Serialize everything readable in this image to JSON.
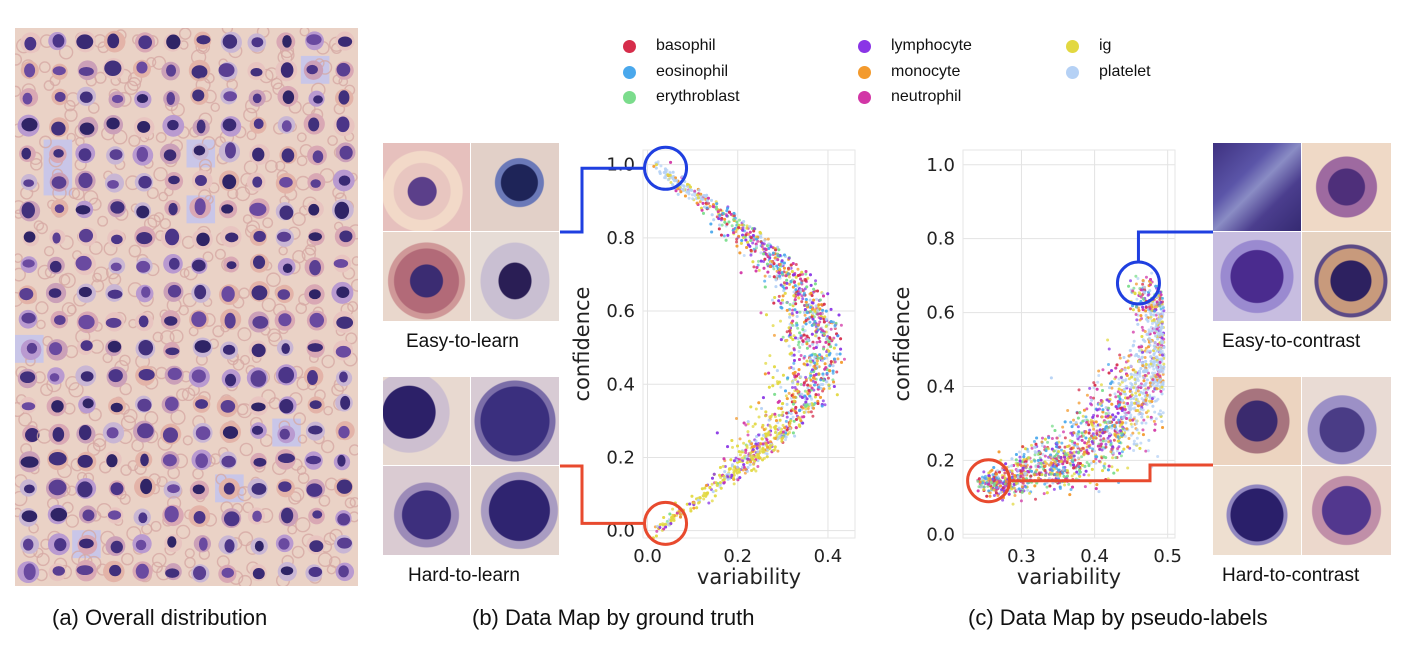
{
  "captions": {
    "a": "(a) Overall distribution",
    "b": "(b) Data Map by ground truth",
    "c": "(c) Data Map by pseudo-labels"
  },
  "thumb_labels": {
    "easy_learn": "Easy-to-learn",
    "hard_learn": "Hard-to-learn",
    "easy_contrast": "Easy-to-contrast",
    "hard_contrast": "Hard-to-contrast"
  },
  "legend": [
    {
      "label": "basophil",
      "color": "#d62d4b"
    },
    {
      "label": "eosinophil",
      "color": "#4aa8ec"
    },
    {
      "label": "erythroblast",
      "color": "#7bdc8c"
    },
    {
      "label": "lymphocyte",
      "color": "#8a35e6"
    },
    {
      "label": "monocyte",
      "color": "#f39a2d"
    },
    {
      "label": "neutrophil",
      "color": "#d236a6"
    },
    {
      "label": "ig",
      "color": "#e2d841"
    },
    {
      "label": "platelet",
      "color": "#b5d1f5"
    }
  ],
  "chart_data": [
    {
      "type": "scatter",
      "title": "",
      "xlabel": "variability",
      "ylabel": "confidence",
      "xlim": [
        -0.01,
        0.46
      ],
      "ylim": [
        -0.02,
        1.04
      ],
      "xticks": [
        "0.0",
        "0.2",
        "0.4"
      ],
      "yticks": [
        "0.0",
        "0.2",
        "0.4",
        "0.6",
        "0.8",
        "1.0"
      ],
      "grid": true,
      "shape": "crescent arc from (0.02, 1.0) bulging to variability 0.42 at confidence 0.5, returning to (0.02, 0.0)",
      "highlight_circles": [
        {
          "x": 0.04,
          "y": 0.99,
          "color": "#1f3fe0"
        },
        {
          "x": 0.04,
          "y": 0.02,
          "color": "#e84a2e"
        }
      ]
    },
    {
      "type": "scatter",
      "title": "",
      "xlabel": "variability",
      "ylabel": "confidence",
      "xlim": [
        0.22,
        0.51
      ],
      "ylim": [
        -0.01,
        1.04
      ],
      "xticks": [
        "0.3",
        "0.4",
        "0.5"
      ],
      "yticks": [
        "0.0",
        "0.2",
        "0.4",
        "0.6",
        "0.8",
        "1.0"
      ],
      "grid": true,
      "shape": "curved band rising from (0.25, 0.14) to (0.49, 0.6) and bending back to (0.46, 0.68)",
      "highlight_circles": [
        {
          "x": 0.46,
          "y": 0.68,
          "color": "#1f3fe0"
        },
        {
          "x": 0.255,
          "y": 0.145,
          "color": "#e84a2e"
        }
      ]
    }
  ]
}
